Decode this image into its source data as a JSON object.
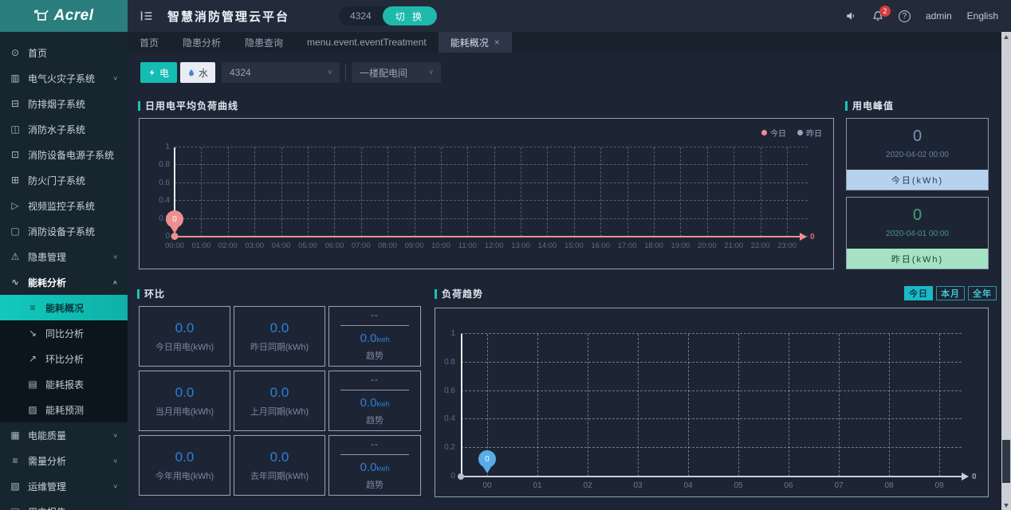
{
  "app": {
    "logo": "Acrel",
    "title": "智慧消防管理云平台",
    "project_code": "4324",
    "switch_button": "切 换",
    "notification_count": "2",
    "user": "admin",
    "language": "English"
  },
  "tabs": [
    {
      "label": "首页"
    },
    {
      "label": "隐患分析"
    },
    {
      "label": "隐患查询"
    },
    {
      "label": "menu.event.eventTreatment"
    },
    {
      "label": "能耗概况",
      "active": true,
      "closable": true
    }
  ],
  "sidebar": [
    {
      "label": "首页",
      "icon": "home"
    },
    {
      "label": "电气火灾子系统",
      "icon": "chart",
      "expandable": true
    },
    {
      "label": "防排烟子系统",
      "icon": "shield"
    },
    {
      "label": "消防水子系统",
      "icon": "video"
    },
    {
      "label": "消防设备电源子系统",
      "icon": "lock"
    },
    {
      "label": "防火门子系统",
      "icon": "door"
    },
    {
      "label": "视频监控子系统",
      "icon": "monitor"
    },
    {
      "label": "消防设备子系统",
      "icon": "device"
    },
    {
      "label": "隐患管理",
      "icon": "warning",
      "expandable": true
    },
    {
      "label": "能耗分析",
      "icon": "energy",
      "expandable": true,
      "expanded": true,
      "children": [
        {
          "label": "能耗概况",
          "icon": "list",
          "active": true
        },
        {
          "label": "同比分析",
          "icon": "down"
        },
        {
          "label": "环比分析",
          "icon": "up"
        },
        {
          "label": "能耗报表",
          "icon": "report"
        },
        {
          "label": "能耗预测",
          "icon": "forecast"
        }
      ]
    },
    {
      "label": "电能质量",
      "icon": "quality",
      "expandable": true
    },
    {
      "label": "需量分析",
      "icon": "demand",
      "expandable": true
    },
    {
      "label": "运维管理",
      "icon": "ops",
      "expandable": true
    },
    {
      "label": "用电报告",
      "icon": "doc"
    }
  ],
  "filters": {
    "electric": "电",
    "water": "水",
    "project_select": "4324",
    "room_select": "一楼配电间"
  },
  "sections": {
    "daily_curve": "日用电平均负荷曲线",
    "peak": "用电峰值",
    "ring": "环比",
    "trend": "负荷趋势"
  },
  "peak_cards": [
    {
      "value": "0",
      "datetime": "2020-04-02 00:00",
      "label": "今日(kWh)",
      "theme": "blue"
    },
    {
      "value": "0",
      "datetime": "2020-04-01 00:00",
      "label": "昨日(kWh)",
      "theme": "green"
    }
  ],
  "ring_cards": [
    [
      {
        "type": "stat",
        "value": "0.0",
        "label": "今日用电(kWh)"
      },
      {
        "type": "stat",
        "value": "0.0",
        "label": "昨日同期(kWh)"
      },
      {
        "type": "trend",
        "placeholder": "--",
        "value": "0.0",
        "unit": "kwh",
        "label": "趋势"
      }
    ],
    [
      {
        "type": "stat",
        "value": "0.0",
        "label": "当月用电(kWh)"
      },
      {
        "type": "stat",
        "value": "0.0",
        "label": "上月同期(kWh)"
      },
      {
        "type": "trend",
        "placeholder": "--",
        "value": "0.0",
        "unit": "kwh",
        "label": "趋势"
      }
    ],
    [
      {
        "type": "stat",
        "value": "0.0",
        "label": "今年用电(kWh)"
      },
      {
        "type": "stat",
        "value": "0.0",
        "label": "去年同期(kWh)"
      },
      {
        "type": "trend",
        "placeholder": "--",
        "value": "0.0",
        "unit": "kwh",
        "label": "趋势"
      }
    ]
  ],
  "trend_buttons": [
    {
      "label": "今日",
      "active": true
    },
    {
      "label": "本月"
    },
    {
      "label": "全年"
    }
  ],
  "colors": {
    "accent_teal": "#1cc3b8",
    "logo_teal": "#2a7e7e",
    "today_series": "#ef8f8f",
    "yesterday_series": "#97a6c4",
    "trend_marker_blue": "#58ace8",
    "value_blue": "#2e7ed8",
    "peak_blue_footer": "#b6d2ef",
    "peak_green_footer": "#a6e2c4",
    "notification_red": "#d13c3c"
  },
  "chart_data": [
    {
      "type": "line",
      "title": "日用电平均负荷曲线",
      "x": [
        "00:00",
        "01:00",
        "02:00",
        "03:00",
        "04:00",
        "05:00",
        "06:00",
        "07:00",
        "08:00",
        "09:00",
        "10:00",
        "11:00",
        "12:00",
        "13:00",
        "14:00",
        "15:00",
        "16:00",
        "17:00",
        "18:00",
        "19:00",
        "20:00",
        "21:00",
        "22:00",
        "23:00"
      ],
      "yticks": [
        0,
        0.2,
        0.4,
        0.6,
        0.8,
        1
      ],
      "ylim": [
        0,
        1
      ],
      "grid": true,
      "legend_position": "top-right",
      "legend": [
        {
          "name": "今日",
          "color": "#ef8f8f"
        },
        {
          "name": "昨日",
          "color": "#97a6c4"
        }
      ],
      "series": [
        {
          "name": "今日",
          "color": "#ef8f8f",
          "values": [
            0,
            0,
            0,
            0,
            0,
            0,
            0,
            0,
            0,
            0,
            0,
            0,
            0,
            0,
            0,
            0,
            0,
            0,
            0,
            0,
            0,
            0,
            0,
            0
          ]
        },
        {
          "name": "昨日",
          "color": "#97a6c4",
          "values": []
        }
      ],
      "marker": {
        "x": "00:00",
        "value": "0",
        "color": "#ef9090"
      },
      "marker_dot": true,
      "zero_line_color": "#ef8f8f",
      "axis_end_label": "0",
      "end_label_color": "#e96a6a"
    },
    {
      "type": "line",
      "title": "负荷趋势",
      "x": [
        "00",
        "01",
        "02",
        "03",
        "04",
        "05",
        "06",
        "07",
        "08",
        "09"
      ],
      "yticks": [
        0,
        0.2,
        0.4,
        0.6,
        0.8,
        1
      ],
      "ylim": [
        0,
        1
      ],
      "grid": true,
      "series": [
        {
          "name": "负荷",
          "color": "#58ace8",
          "values": [
            0
          ]
        }
      ],
      "marker": {
        "x": "00",
        "value": "0",
        "color": "#58ace8"
      },
      "marker_dot": false,
      "origin_dot": true,
      "zero_line_color": "#c9cfd9",
      "axis_end_label": "0",
      "end_label_color": "#98a3b6"
    }
  ]
}
